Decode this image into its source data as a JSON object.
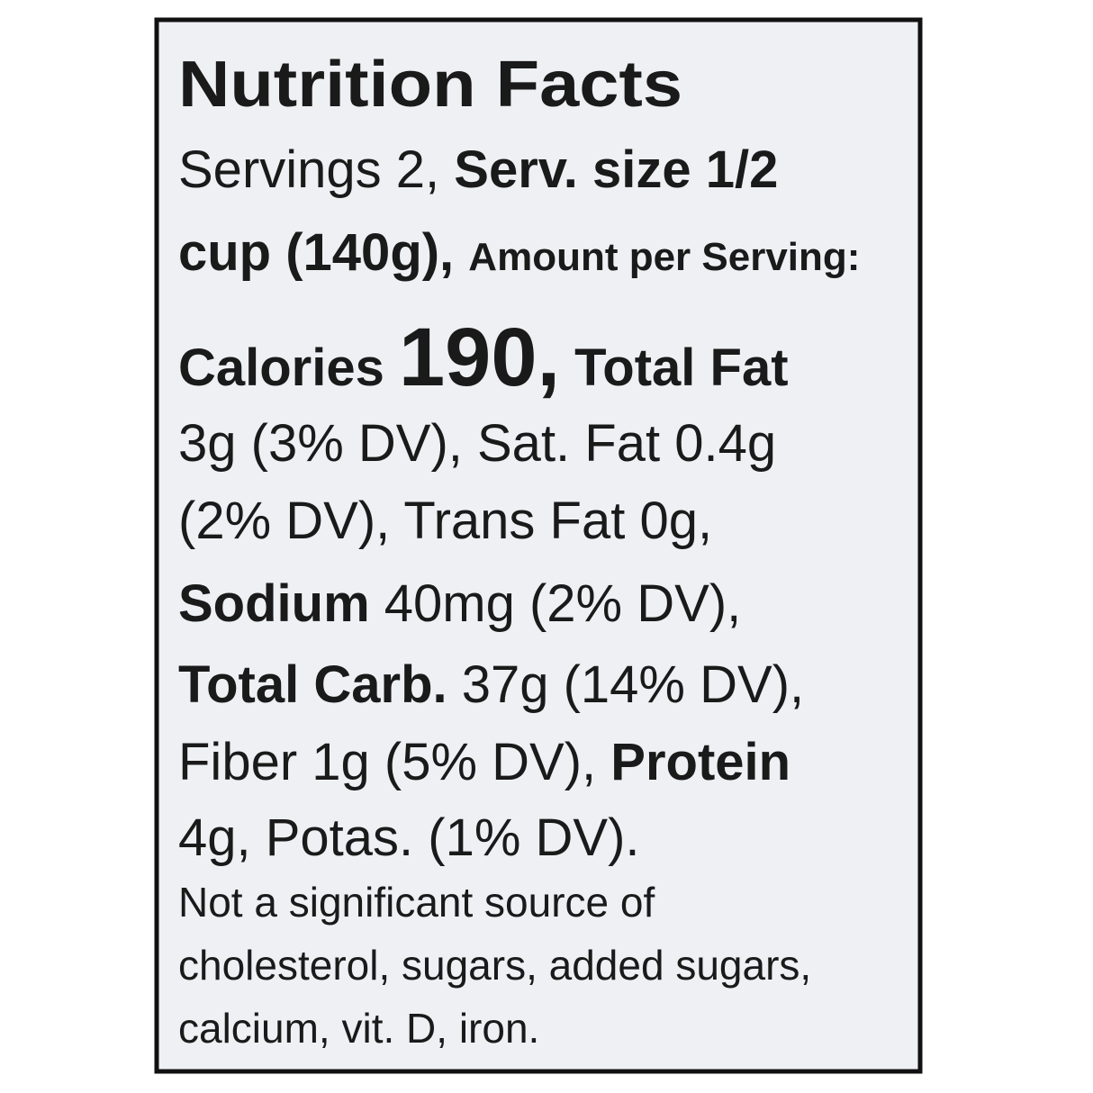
{
  "label": {
    "title": "Nutrition Facts",
    "lines": [
      [
        {
          "text": "Servings 2, ",
          "style": "regular"
        },
        {
          "text": "Serv. size 1/2",
          "style": "bold"
        }
      ],
      [
        {
          "text": "cup (140g), ",
          "style": "bold"
        },
        {
          "text": "Amount per Serving:",
          "style": "bold-small"
        }
      ],
      [
        {
          "text": "Calories ",
          "style": "bold"
        },
        {
          "text": "190,",
          "style": "bold-large"
        },
        {
          "text": " Total Fat",
          "style": "bold"
        }
      ],
      [
        {
          "text": "3g (3% DV), Sat. Fat 0.4g",
          "style": "regular"
        }
      ],
      [
        {
          "text": "(2% DV), Trans Fat 0g,",
          "style": "regular"
        }
      ],
      [
        {
          "text": "Sodium",
          "style": "bold"
        },
        {
          "text": " 40mg (2% DV),",
          "style": "regular"
        }
      ],
      [
        {
          "text": "Total Carb.",
          "style": "bold"
        },
        {
          "text": " 37g (14% DV),",
          "style": "regular"
        }
      ],
      [
        {
          "text": "Fiber 1g (5% DV), ",
          "style": "regular"
        },
        {
          "text": "Protein",
          "style": "bold"
        }
      ],
      [
        {
          "text": "4g, Potas. (1% DV).",
          "style": "regular"
        }
      ]
    ],
    "footnote": [
      "Not a significant source of",
      "cholesterol, sugars, added sugars,",
      "calcium, vit. D, iron."
    ]
  }
}
